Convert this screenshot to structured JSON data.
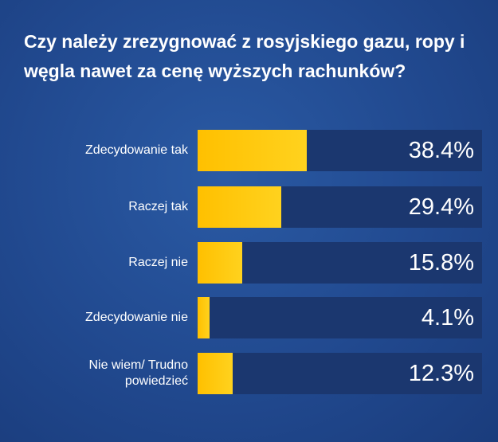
{
  "chart_data": {
    "type": "bar",
    "orientation": "horizontal",
    "title": "Czy należy zrezygnować z rosyjskiego gazu, ropy i węgla nawet za cenę wyższych rachunków?",
    "categories": [
      "Zdecydowanie tak",
      "Raczej tak",
      "Raczej nie",
      "Zdecydowanie nie",
      "Nie wiem/ Trudno powiedzieć"
    ],
    "values": [
      38.4,
      29.4,
      15.8,
      4.1,
      12.3
    ],
    "value_labels": [
      "38.4%",
      "29.4%",
      "15.8%",
      "4.1%",
      "12.3%"
    ],
    "xlim": [
      0,
      100
    ],
    "grid": false,
    "colors": {
      "bar": "#ffc000",
      "track": "#1b376f",
      "background": "#21498f",
      "text": "#ffffff"
    }
  }
}
